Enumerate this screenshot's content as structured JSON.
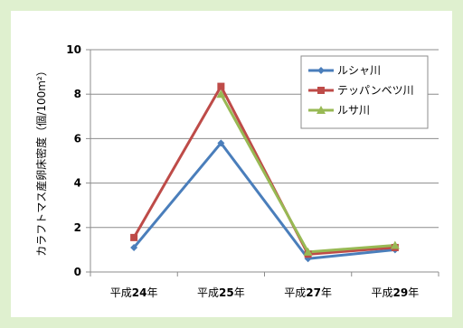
{
  "chart_data": {
    "type": "line",
    "categories": [
      "平成24年",
      "平成25年",
      "平成27年",
      "平成29年"
    ],
    "ylabel": "カラフトマス産卵床密度（個/100m²）",
    "ylim": [
      0,
      10
    ],
    "yticks": [
      0,
      2,
      4,
      6,
      8,
      10
    ],
    "grid": true,
    "legend_position": "top-right",
    "series": [
      {
        "name": "ルシャ川",
        "values": [
          1.1,
          5.8,
          0.6,
          1.0
        ],
        "color": "#4a7ebb",
        "marker": "diamond"
      },
      {
        "name": "テッパンベツ川",
        "values": [
          1.55,
          8.35,
          0.8,
          1.1
        ],
        "color": "#be4b48",
        "marker": "square"
      },
      {
        "name": "ルサ川",
        "values": [
          null,
          8.0,
          0.9,
          1.2
        ],
        "color": "#98b954",
        "marker": "triangle"
      }
    ]
  }
}
